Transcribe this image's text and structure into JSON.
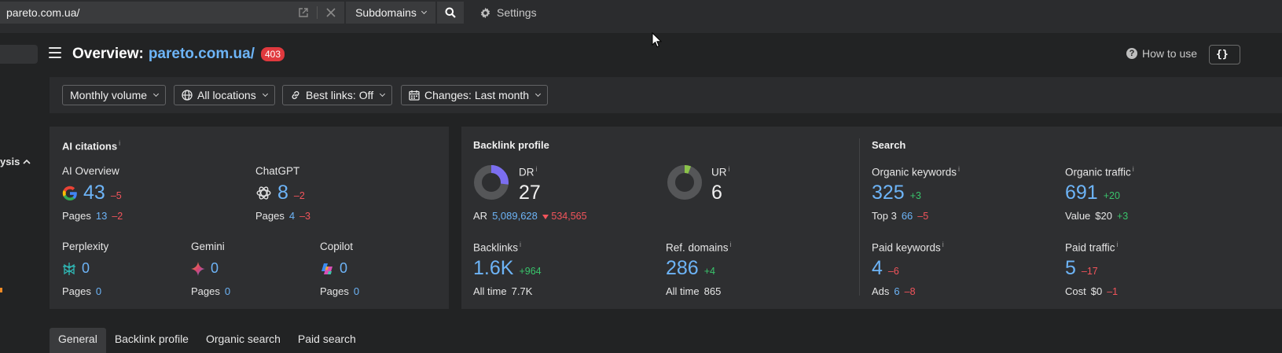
{
  "topbar": {
    "url": "pareto.com.ua/",
    "subdomains_label": "Subdomains",
    "settings_label": "Settings"
  },
  "sidebar": {
    "section_label": "ysis"
  },
  "header": {
    "title_prefix": "Overview:",
    "domain": "pareto.com.ua/",
    "status_badge": "403",
    "how_to_use": "How to use",
    "api_button": "{}"
  },
  "filters": {
    "volume": "Monthly volume",
    "locations": "All locations",
    "best_links": "Best links: Off",
    "changes": "Changes: Last month"
  },
  "ai_citations": {
    "title": "AI citations",
    "info": "i",
    "ai_overview": {
      "label": "AI Overview",
      "value": "43",
      "delta": "–5",
      "pages_label": "Pages",
      "pages": "13",
      "pages_delta": "–2"
    },
    "chatgpt": {
      "label": "ChatGPT",
      "value": "8",
      "delta": "–2",
      "pages_label": "Pages",
      "pages": "4",
      "pages_delta": "–3"
    },
    "perplexity": {
      "label": "Perplexity",
      "value": "0",
      "pages_label": "Pages",
      "pages": "0"
    },
    "gemini": {
      "label": "Gemini",
      "value": "0",
      "pages_label": "Pages",
      "pages": "0"
    },
    "copilot": {
      "label": "Copilot",
      "value": "0",
      "pages_label": "Pages",
      "pages": "0"
    }
  },
  "backlink_profile": {
    "title": "Backlink profile",
    "dr": {
      "label": "DR",
      "value": "27",
      "fill_fraction": 0.27
    },
    "ar_label": "AR",
    "ar_value": "5,089,628",
    "ar_delta": "534,565",
    "ur": {
      "label": "UR",
      "value": "6",
      "fill_fraction": 0.06
    },
    "backlinks": {
      "label": "Backlinks",
      "value": "1.6K",
      "delta": "+964",
      "alltime_label": "All time",
      "alltime": "7.7K"
    },
    "ref_domains": {
      "label": "Ref. domains",
      "value": "286",
      "delta": "+4",
      "alltime_label": "All time",
      "alltime": "865"
    }
  },
  "search": {
    "title": "Search",
    "organic_keywords": {
      "label": "Organic keywords",
      "value": "325",
      "delta": "+3",
      "sub_label": "Top 3",
      "sub_value": "66",
      "sub_delta": "–5"
    },
    "organic_traffic": {
      "label": "Organic traffic",
      "value": "691",
      "delta": "+20",
      "sub_label": "Value",
      "sub_value": "$20",
      "sub_delta": "+3"
    },
    "paid_keywords": {
      "label": "Paid keywords",
      "value": "4",
      "delta": "–6",
      "sub_label": "Ads",
      "sub_value": "6",
      "sub_delta": "–8"
    },
    "paid_traffic": {
      "label": "Paid traffic",
      "value": "5",
      "delta": "–17",
      "sub_label": "Cost",
      "sub_value": "$0",
      "sub_delta": "–1"
    }
  },
  "tabs": [
    "General",
    "Backlink profile",
    "Organic search",
    "Paid search"
  ],
  "colors": {
    "accent_blue": "#6db4f7",
    "positive": "#39c46b",
    "negative": "#f2545b",
    "dr_fill": "#7b6ef0",
    "ur_fill": "#8bc34a"
  }
}
